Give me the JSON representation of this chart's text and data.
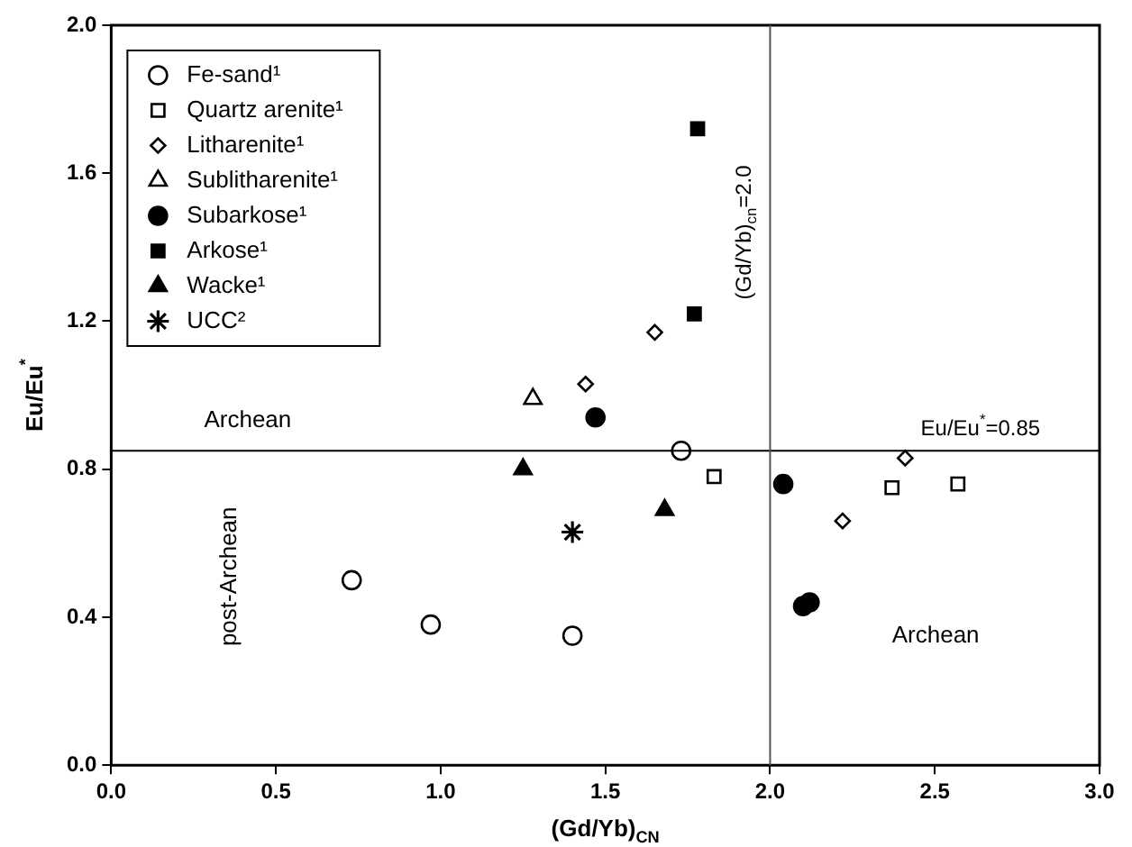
{
  "chart_data": {
    "type": "scatter",
    "xlabel": "(Gd/Yb)$_{CN}$",
    "ylabel": "Eu/Eu$^{*}$",
    "xlim": [
      0,
      3
    ],
    "xticks": [
      {
        "value": 0,
        "label": "0.0"
      },
      {
        "value": 0.5,
        "label": "0.5"
      },
      {
        "value": 1,
        "label": "1.0"
      },
      {
        "value": 1.5,
        "label": "1.5"
      },
      {
        "value": 2,
        "label": "2.0"
      },
      {
        "value": 2.5,
        "label": "2.5"
      },
      {
        "value": 3,
        "label": "3.0"
      }
    ],
    "ylim": [
      0,
      2
    ],
    "yticks": [
      {
        "value": 0,
        "label": "0.0"
      },
      {
        "value": 0.4,
        "label": "0.4"
      },
      {
        "value": 0.8,
        "label": "0.8"
      },
      {
        "value": 1.2,
        "label": "1.2"
      },
      {
        "value": 1.6,
        "label": "1.6"
      },
      {
        "value": 2,
        "label": "2.0"
      }
    ],
    "grid": false,
    "legend": "top left",
    "series": [
      {
        "name": "Fe-sand¹",
        "color": "#ffffff",
        "marker": "circle",
        "x": [
          0.73,
          0.97,
          1.4,
          1.73
        ],
        "values": [
          0.5,
          0.38,
          0.35,
          0.85
        ]
      },
      {
        "name": "Quartz arenite¹",
        "color": "#ffffff",
        "marker": "square",
        "x": [
          1.83,
          2.37,
          2.57
        ],
        "values": [
          0.78,
          0.75,
          0.76
        ]
      },
      {
        "name": "Litharenite¹",
        "color": "#ffffff",
        "marker": "diamond",
        "x": [
          1.44,
          1.65,
          2.41,
          2.22
        ],
        "values": [
          1.03,
          1.17,
          0.83,
          0.66
        ]
      },
      {
        "name": "Sublitharenite¹",
        "color": "#ffffff",
        "marker": "triangle",
        "x": [
          1.28
        ],
        "values": [
          0.99
        ]
      },
      {
        "name": "Subarkose¹",
        "color": "#000000",
        "marker": "circle",
        "x": [
          1.47,
          2.04,
          2.1,
          2.12
        ],
        "values": [
          0.94,
          0.76,
          0.43,
          0.44
        ]
      },
      {
        "name": "Arkose¹",
        "color": "#000000",
        "marker": "square",
        "x": [
          1.78,
          1.77
        ],
        "values": [
          1.72,
          1.22
        ]
      },
      {
        "name": "Wacke¹",
        "color": "#000000",
        "marker": "triangle",
        "x": [
          1.25,
          1.68
        ],
        "values": [
          0.8,
          0.69
        ]
      },
      {
        "name": "UCC²",
        "color": "#000000",
        "marker": "cross",
        "x": [
          1.4
        ],
        "values": [
          0.63
        ]
      }
    ],
    "ref_lines": [
      {
        "axis": "y",
        "value": 0.85,
        "label": "Eu/Eu$^{*}$=0.85"
      },
      {
        "axis": "x",
        "value": 2.0,
        "label": "(Gd/Yb)$_{cn}$=2.0"
      }
    ],
    "annotations": [
      "Archean",
      "post-Archean",
      "Archean"
    ]
  }
}
